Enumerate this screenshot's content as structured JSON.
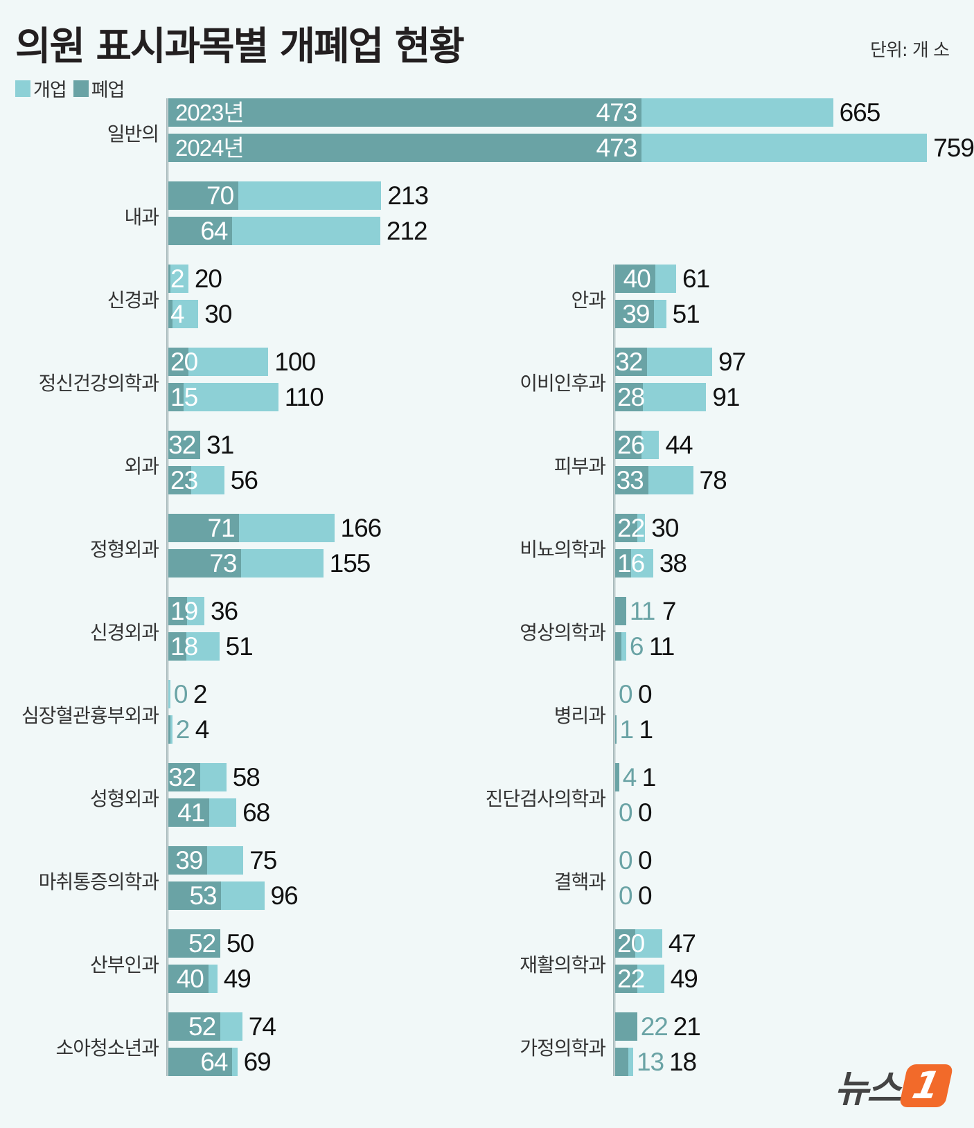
{
  "title": "의원 표시과목별 개폐업 현황",
  "unit": "단위: 개 소",
  "legend": {
    "open": "개업",
    "close": "폐업"
  },
  "colors": {
    "open": "#8dd0d6",
    "close": "#6aa3a5",
    "background": "#f1f8f8"
  },
  "logo": {
    "text": "뉴스",
    "mark": "1"
  },
  "chart_data": {
    "type": "bar",
    "orientation": "horizontal",
    "overlay": true,
    "years": [
      "2023년",
      "2024년"
    ],
    "series_names": {
      "open": "개업",
      "close": "폐업"
    },
    "left": [
      {
        "category": "일반의",
        "close": [
          473,
          473
        ],
        "open": [
          665,
          759
        ]
      },
      {
        "category": "내과",
        "close": [
          70,
          64
        ],
        "open": [
          213,
          212
        ]
      },
      {
        "category": "신경과",
        "close": [
          2,
          4
        ],
        "open": [
          20,
          30
        ]
      },
      {
        "category": "정신건강의학과",
        "close": [
          20,
          15
        ],
        "open": [
          100,
          110
        ]
      },
      {
        "category": "외과",
        "close": [
          32,
          23
        ],
        "open": [
          31,
          56
        ]
      },
      {
        "category": "정형외과",
        "close": [
          71,
          73
        ],
        "open": [
          166,
          155
        ]
      },
      {
        "category": "신경외과",
        "close": [
          19,
          18
        ],
        "open": [
          36,
          51
        ]
      },
      {
        "category": "심장혈관흉부외과",
        "close": [
          0,
          2
        ],
        "open": [
          2,
          4
        ]
      },
      {
        "category": "성형외과",
        "close": [
          32,
          41
        ],
        "open": [
          58,
          68
        ]
      },
      {
        "category": "마취통증의학과",
        "close": [
          39,
          53
        ],
        "open": [
          75,
          96
        ]
      },
      {
        "category": "산부인과",
        "close": [
          52,
          40
        ],
        "open": [
          50,
          49
        ]
      },
      {
        "category": "소아청소년과",
        "close": [
          52,
          64
        ],
        "open": [
          74,
          69
        ]
      }
    ],
    "right": [
      {
        "category": "안과",
        "close": [
          40,
          39
        ],
        "open": [
          61,
          51
        ]
      },
      {
        "category": "이비인후과",
        "close": [
          32,
          28
        ],
        "open": [
          97,
          91
        ]
      },
      {
        "category": "피부과",
        "close": [
          26,
          33
        ],
        "open": [
          44,
          78
        ]
      },
      {
        "category": "비뇨의학과",
        "close": [
          22,
          16
        ],
        "open": [
          30,
          38
        ]
      },
      {
        "category": "영상의학과",
        "close": [
          11,
          6
        ],
        "open": [
          7,
          11
        ]
      },
      {
        "category": "병리과",
        "close": [
          0,
          1
        ],
        "open": [
          0,
          1
        ]
      },
      {
        "category": "진단검사의학과",
        "close": [
          4,
          0
        ],
        "open": [
          1,
          0
        ]
      },
      {
        "category": "결핵과",
        "close": [
          0,
          0
        ],
        "open": [
          0,
          0
        ]
      },
      {
        "category": "재활의학과",
        "close": [
          20,
          22
        ],
        "open": [
          47,
          49
        ]
      },
      {
        "category": "가정의학과",
        "close": [
          22,
          13
        ],
        "open": [
          21,
          18
        ]
      }
    ]
  }
}
